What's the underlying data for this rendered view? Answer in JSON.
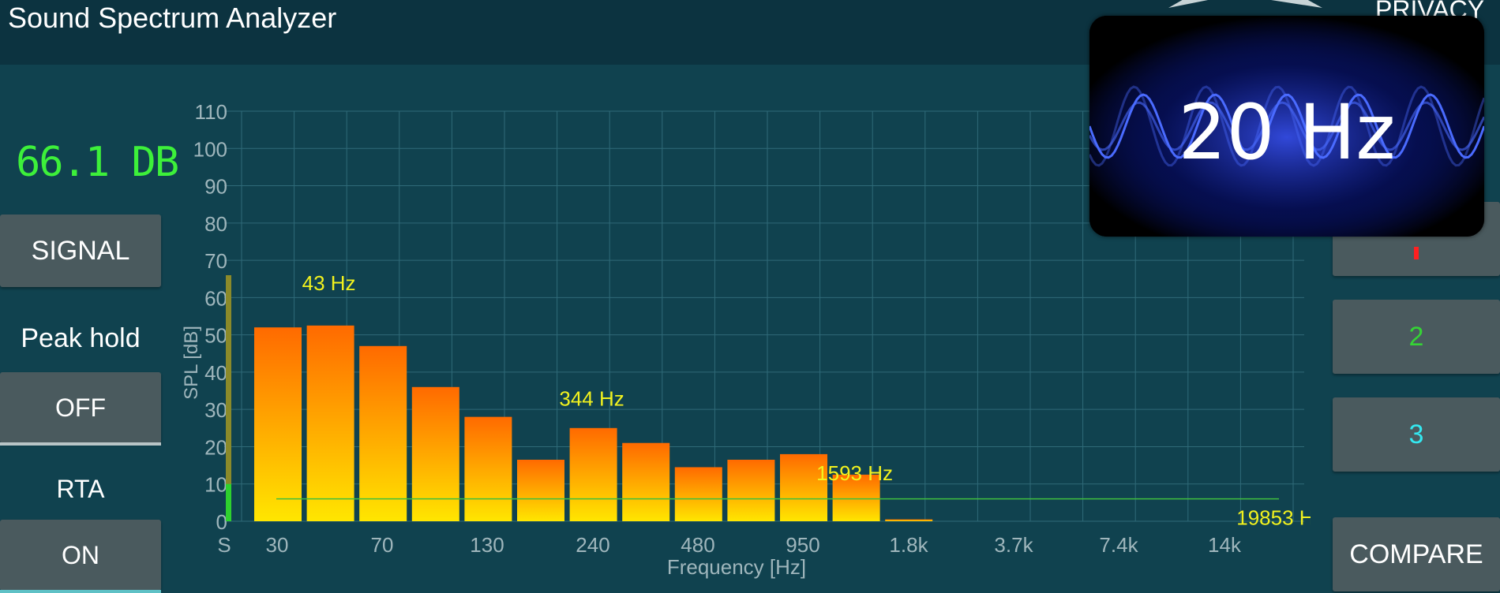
{
  "app": {
    "title": "Sound Spectrum Analyzer",
    "privacy_label": "PRIVACY"
  },
  "readout": {
    "level": "66.1 DB"
  },
  "left_panel": {
    "signal_label": "SIGNAL",
    "peak_hold_label": "Peak hold",
    "peak_hold_value": "OFF",
    "rta_label": "RTA",
    "rta_value": "ON"
  },
  "right_panel": {
    "buttons": [
      "2",
      "3"
    ],
    "compare_label": "COMPARE",
    "colors": {
      "btn2": "#35d435",
      "btn3": "#34e8f0",
      "btn1_mark": "#ff2020"
    }
  },
  "overlay": {
    "text": "20 Hz"
  },
  "chart_data": {
    "type": "bar",
    "xlabel": "Frequency [Hz]",
    "ylabel": "SPL [dB]",
    "ylim": [
      0,
      110
    ],
    "y_ticks": [
      "0",
      "10",
      "20",
      "30",
      "40",
      "50",
      "60",
      "70",
      "80",
      "90",
      "100",
      "110"
    ],
    "x_ticks": [
      "S",
      "30",
      "70",
      "130",
      "240",
      "480",
      "950",
      "1.8k",
      "3.7k",
      "7.4k",
      "14k"
    ],
    "bars": [
      {
        "band": 1,
        "value": 52
      },
      {
        "band": 2,
        "value": 52.5
      },
      {
        "band": 3,
        "value": 47
      },
      {
        "band": 4,
        "value": 36
      },
      {
        "band": 5,
        "value": 28
      },
      {
        "band": 6,
        "value": 16.5
      },
      {
        "band": 7,
        "value": 25
      },
      {
        "band": 8,
        "value": 21
      },
      {
        "band": 9,
        "value": 14.5
      },
      {
        "band": 10,
        "value": 16.5
      },
      {
        "band": 11,
        "value": 18
      },
      {
        "band": 12,
        "value": 12.5
      },
      {
        "band": 13,
        "value": 0.5
      }
    ],
    "peak_labels": [
      {
        "text": "43 Hz",
        "band": 2,
        "value": 62
      },
      {
        "text": "344 Hz",
        "band": 7,
        "value": 31
      },
      {
        "text": "1593 Hz",
        "band": 12,
        "value": 11
      },
      {
        "text": "19853 H",
        "band": 20,
        "value": -1
      }
    ],
    "level_bar": {
      "value": 66,
      "green_value": 10
    },
    "reference_line_value": 6,
    "colors": {
      "bar_top": "#ff6a00",
      "bar_bottom": "#ffe600",
      "label": "#f2f21e",
      "grid": "#2f6a78",
      "axis_text": "#9fb6bc"
    }
  }
}
